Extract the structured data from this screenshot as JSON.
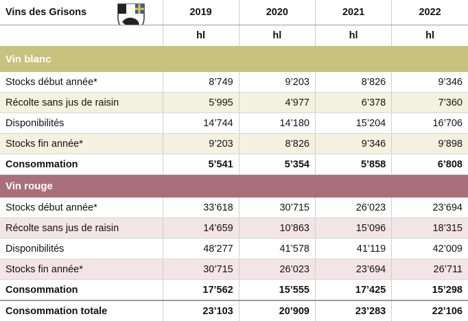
{
  "header": {
    "title": "Vins des Grisons",
    "years": [
      "2019",
      "2020",
      "2021",
      "2022"
    ],
    "units": [
      "hl",
      "hl",
      "hl",
      "hl"
    ]
  },
  "sections": [
    {
      "name": "Vin blanc",
      "rows": [
        {
          "label": "Stocks début année*",
          "values": [
            "8’749",
            "9’203",
            "8’826",
            "9’346"
          ]
        },
        {
          "label": "Récolte sans jus de raisin",
          "values": [
            "5’995",
            "4’977",
            "6’378",
            "7’360"
          ]
        },
        {
          "label": "Disponibilités",
          "values": [
            "14’744",
            "14’180",
            "15’204",
            "16’706"
          ]
        },
        {
          "label": "Stocks fin année*",
          "values": [
            "9’203",
            "8’826",
            "9’346",
            "9’898"
          ]
        },
        {
          "label": "Consommation",
          "values": [
            "5’541",
            "5’354",
            "5’858",
            "6’808"
          ]
        }
      ]
    },
    {
      "name": "Vin rouge",
      "rows": [
        {
          "label": "Stocks début année*",
          "values": [
            "33’618",
            "30’715",
            "26’023",
            "23’694"
          ]
        },
        {
          "label": "Récolte sans jus de raisin",
          "values": [
            "14’659",
            "10’863",
            "15’096",
            "18’315"
          ]
        },
        {
          "label": "Disponibilités",
          "values": [
            "48’277",
            "41’578",
            "41’119",
            "42’009"
          ]
        },
        {
          "label": "Stocks fin année*",
          "values": [
            "30’715",
            "26’023",
            "23’694",
            "26’711"
          ]
        },
        {
          "label": "Consommation",
          "values": [
            "17’562",
            "15’555",
            "17’425",
            "15’298"
          ]
        }
      ]
    }
  ],
  "total": {
    "label": "Consommation totale",
    "values": [
      "23’103",
      "20’909",
      "23’283",
      "22’106"
    ]
  }
}
